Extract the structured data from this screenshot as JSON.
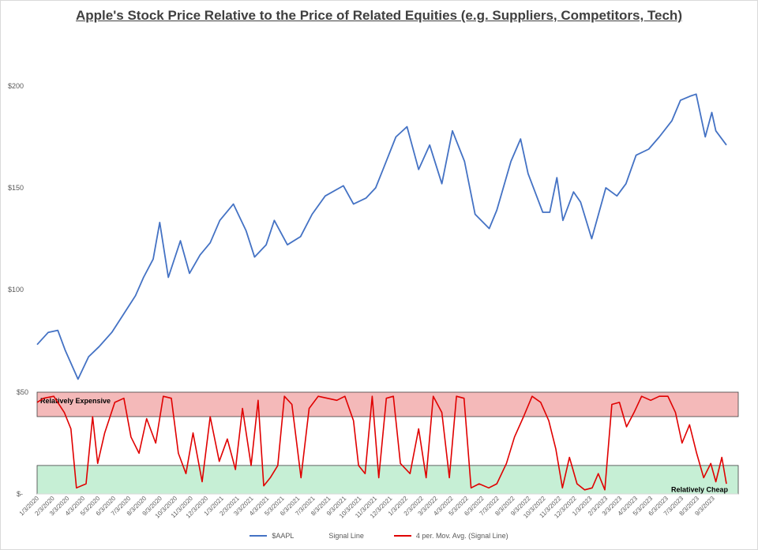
{
  "chart_data": [
    {
      "type": "line",
      "title": "Apple's Stock Price Relative to the Price of Related Equities (e.g. Suppliers, Competitors, Tech)",
      "y_ticks": [
        "$200",
        "$150",
        "$100"
      ],
      "ylim": [
        0,
        200
      ],
      "grid": false,
      "x_range": [
        "1/3/2020",
        "9/29/2023"
      ],
      "series": [
        {
          "name": "$AAPL",
          "color": "#4472c4",
          "points": [
            [
              "2020-01-02",
              73
            ],
            [
              "2020-01-24",
              79
            ],
            [
              "2020-02-12",
              80
            ],
            [
              "2020-02-27",
              70
            ],
            [
              "2020-03-23",
              56
            ],
            [
              "2020-04-13",
              67
            ],
            [
              "2020-05-04",
              72
            ],
            [
              "2020-05-29",
              79
            ],
            [
              "2020-06-19",
              87
            ],
            [
              "2020-07-15",
              97
            ],
            [
              "2020-07-31",
              106
            ],
            [
              "2020-08-19",
              115
            ],
            [
              "2020-09-01",
              133
            ],
            [
              "2020-09-18",
              106
            ],
            [
              "2020-10-12",
              124
            ],
            [
              "2020-10-30",
              108
            ],
            [
              "2020-11-20",
              117
            ],
            [
              "2020-12-10",
              123
            ],
            [
              "2020-12-29",
              134
            ],
            [
              "2021-01-25",
              142
            ],
            [
              "2021-02-19",
              129
            ],
            [
              "2021-03-08",
              116
            ],
            [
              "2021-03-31",
              122
            ],
            [
              "2021-04-16",
              134
            ],
            [
              "2021-05-12",
              122
            ],
            [
              "2021-06-07",
              126
            ],
            [
              "2021-06-30",
              137
            ],
            [
              "2021-07-26",
              146
            ],
            [
              "2021-08-31",
              151
            ],
            [
              "2021-09-20",
              142
            ],
            [
              "2021-10-15",
              145
            ],
            [
              "2021-11-03",
              150
            ],
            [
              "2021-11-19",
              160
            ],
            [
              "2021-12-13",
              175
            ],
            [
              "2022-01-04",
              180
            ],
            [
              "2022-01-27",
              159
            ],
            [
              "2022-02-18",
              171
            ],
            [
              "2022-03-14",
              152
            ],
            [
              "2022-04-04",
              178
            ],
            [
              "2022-04-28",
              163
            ],
            [
              "2022-05-19",
              137
            ],
            [
              "2022-06-16",
              130
            ],
            [
              "2022-07-01",
              139
            ],
            [
              "2022-07-29",
              163
            ],
            [
              "2022-08-17",
              174
            ],
            [
              "2022-09-01",
              157
            ],
            [
              "2022-09-30",
              138
            ],
            [
              "2022-10-14",
              138
            ],
            [
              "2022-10-28",
              155
            ],
            [
              "2022-11-09",
              134
            ],
            [
              "2022-11-30",
              148
            ],
            [
              "2022-12-14",
              143
            ],
            [
              "2023-01-05",
              125
            ],
            [
              "2023-02-02",
              150
            ],
            [
              "2023-02-24",
              146
            ],
            [
              "2023-03-14",
              152
            ],
            [
              "2023-04-03",
              166
            ],
            [
              "2023-04-28",
              169
            ],
            [
              "2023-05-19",
              175
            ],
            [
              "2023-06-13",
              183
            ],
            [
              "2023-06-30",
              193
            ],
            [
              "2023-07-19",
              195
            ],
            [
              "2023-07-31",
              196
            ],
            [
              "2023-08-18",
              175
            ],
            [
              "2023-08-31",
              187
            ],
            [
              "2023-09-08",
              178
            ],
            [
              "2023-09-29",
              171
            ]
          ]
        },
        {
          "name": "Signal Line"
        },
        {
          "name": "4 per. Mov. Avg. (Signal Line)",
          "color": "#e00000",
          "points": [
            [
              "2020-01-02",
              45
            ],
            [
              "2020-01-15",
              47
            ],
            [
              "2020-02-04",
              48
            ],
            [
              "2020-02-25",
              40
            ],
            [
              "2020-03-09",
              32
            ],
            [
              "2020-03-20",
              3
            ],
            [
              "2020-04-08",
              5
            ],
            [
              "2020-04-21",
              38
            ],
            [
              "2020-05-01",
              15
            ],
            [
              "2020-05-15",
              30
            ],
            [
              "2020-06-04",
              45
            ],
            [
              "2020-06-22",
              47
            ],
            [
              "2020-07-06",
              28
            ],
            [
              "2020-07-22",
              20
            ],
            [
              "2020-08-06",
              37
            ],
            [
              "2020-08-24",
              25
            ],
            [
              "2020-09-08",
              48
            ],
            [
              "2020-09-24",
              47
            ],
            [
              "2020-10-08",
              20
            ],
            [
              "2020-10-23",
              10
            ],
            [
              "2020-11-06",
              30
            ],
            [
              "2020-11-24",
              6
            ],
            [
              "2020-12-10",
              38
            ],
            [
              "2020-12-28",
              16
            ],
            [
              "2021-01-13",
              27
            ],
            [
              "2021-01-29",
              12
            ],
            [
              "2021-02-12",
              42
            ],
            [
              "2021-03-01",
              14
            ],
            [
              "2021-03-15",
              46
            ],
            [
              "2021-03-26",
              4
            ],
            [
              "2021-04-08",
              8
            ],
            [
              "2021-04-23",
              14
            ],
            [
              "2021-05-06",
              48
            ],
            [
              "2021-05-21",
              44
            ],
            [
              "2021-06-08",
              8
            ],
            [
              "2021-06-24",
              42
            ],
            [
              "2021-07-12",
              48
            ],
            [
              "2021-07-30",
              47
            ],
            [
              "2021-08-18",
              46
            ],
            [
              "2021-09-03",
              48
            ],
            [
              "2021-09-20",
              36
            ],
            [
              "2021-09-30",
              14
            ],
            [
              "2021-10-13",
              10
            ],
            [
              "2021-10-27",
              48
            ],
            [
              "2021-11-09",
              8
            ],
            [
              "2021-11-24",
              47
            ],
            [
              "2021-12-08",
              48
            ],
            [
              "2021-12-22",
              15
            ],
            [
              "2022-01-10",
              10
            ],
            [
              "2022-01-27",
              32
            ],
            [
              "2022-02-11",
              8
            ],
            [
              "2022-02-25",
              48
            ],
            [
              "2022-03-14",
              40
            ],
            [
              "2022-03-29",
              8
            ],
            [
              "2022-04-12",
              48
            ],
            [
              "2022-04-27",
              47
            ],
            [
              "2022-05-11",
              3
            ],
            [
              "2022-05-27",
              5
            ],
            [
              "2022-06-15",
              3
            ],
            [
              "2022-07-01",
              5
            ],
            [
              "2022-07-20",
              15
            ],
            [
              "2022-08-05",
              28
            ],
            [
              "2022-08-23",
              38
            ],
            [
              "2022-09-09",
              48
            ],
            [
              "2022-09-26",
              45
            ],
            [
              "2022-10-12",
              36
            ],
            [
              "2022-10-26",
              22
            ],
            [
              "2022-11-08",
              3
            ],
            [
              "2022-11-22",
              18
            ],
            [
              "2022-12-07",
              5
            ],
            [
              "2022-12-22",
              2
            ],
            [
              "2023-01-06",
              3
            ],
            [
              "2023-01-18",
              10
            ],
            [
              "2023-01-31",
              2
            ],
            [
              "2023-02-14",
              44
            ],
            [
              "2023-03-01",
              45
            ],
            [
              "2023-03-15",
              33
            ],
            [
              "2023-03-30",
              40
            ],
            [
              "2023-04-14",
              48
            ],
            [
              "2023-05-02",
              46
            ],
            [
              "2023-05-19",
              48
            ],
            [
              "2023-06-05",
              48
            ],
            [
              "2023-06-20",
              40
            ],
            [
              "2023-07-03",
              25
            ],
            [
              "2023-07-18",
              34
            ],
            [
              "2023-08-01",
              20
            ],
            [
              "2023-08-15",
              8
            ],
            [
              "2023-08-29",
              15
            ],
            [
              "2023-09-08",
              6
            ],
            [
              "2023-09-20",
              18
            ],
            [
              "2023-09-29",
              5
            ]
          ]
        }
      ]
    },
    {
      "type": "line",
      "y_ticks": [
        "$50",
        "$-"
      ],
      "ylim": [
        0,
        50
      ],
      "bands": [
        {
          "label": "Relatively Expensive",
          "from": 38,
          "to": 50,
          "color": "#f4b9b9"
        },
        {
          "label": "Relatively Cheap",
          "from": 0,
          "to": 14,
          "color": "#c6efd5"
        }
      ],
      "x_tick_labels": [
        "1/3/2020",
        "2/3/2020",
        "3/3/2020",
        "4/3/2020",
        "5/3/2020",
        "6/3/2020",
        "7/3/2020",
        "8/3/2020",
        "9/3/2020",
        "10/3/2020",
        "11/3/2020",
        "12/3/2020",
        "1/3/2021",
        "2/3/2021",
        "3/3/2021",
        "4/3/2021",
        "5/3/2021",
        "6/3/2021",
        "7/3/2021",
        "8/3/2021",
        "9/3/2021",
        "10/3/2021",
        "11/3/2021",
        "12/3/2021",
        "1/3/2022",
        "2/3/2022",
        "3/3/2022",
        "4/3/2022",
        "5/3/2022",
        "6/3/2022",
        "7/3/2022",
        "8/3/2022",
        "9/3/2022",
        "10/3/2022",
        "11/3/2022",
        "12/3/2022",
        "1/3/2023",
        "2/3/2023",
        "3/3/2023",
        "4/3/2023",
        "5/3/2023",
        "6/3/2023",
        "7/3/2023",
        "8/3/2023",
        "9/3/2023"
      ]
    }
  ],
  "legend": [
    {
      "label": "$AAPL",
      "color": "#4472c4"
    },
    {
      "label": "Signal Line",
      "color": ""
    },
    {
      "label": "4 per. Mov. Avg. (Signal Line)",
      "color": "#e00000"
    }
  ]
}
